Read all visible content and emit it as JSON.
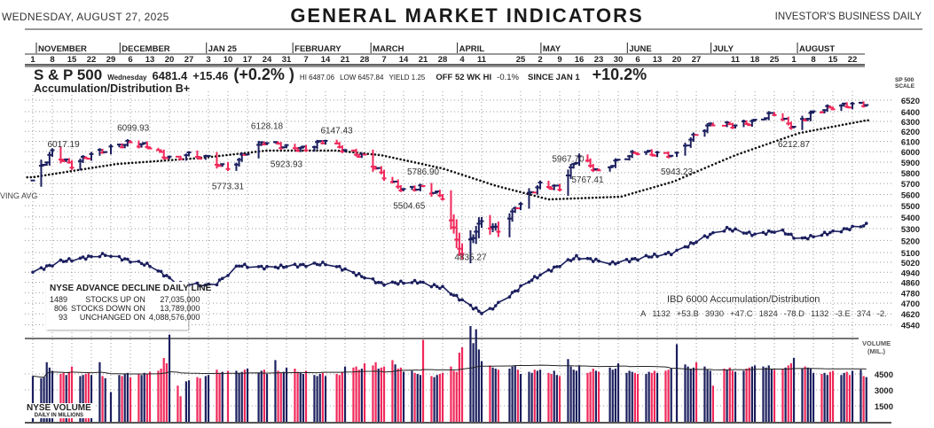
{
  "header": {
    "date": "WEDNESDAY, AUGUST 27, 2025",
    "title": "GENERAL MARKET INDICATORS",
    "source": "INVESTOR'S BUSINESS DAILY"
  },
  "quote": {
    "name": "S & P 500",
    "day": "Wednesday",
    "close": "6481.4",
    "change": "+15.46",
    "pct": "(+0.2% )",
    "hi": "HI 6487.06",
    "low": "LOW 6457.84",
    "yield": "YIELD 1.25",
    "off_label": "OFF 52 WK HI",
    "off_value": "-0.1%",
    "since_label": "SINCE JAN 1",
    "since_value": "+10.2%"
  },
  "ad_rating": "Accumulation/Distribution   B+",
  "moving_avg_label": "VING AVG",
  "scale_label": [
    "SP 500",
    "SCALE"
  ],
  "volume_label": [
    "VOLUME",
    "(MIL.)"
  ],
  "nyse_ad": {
    "title": "NYSE ADVANCE DECLINE DAILY LINE",
    "rows": [
      {
        "count": "1489",
        "label": "STOCKS  UP ON",
        "volume": "27,035,000"
      },
      {
        "count": "806",
        "label": "STOCKS  DOWN ON",
        "volume": "13,789,000"
      },
      {
        "count": "93",
        "label": "UNCHANGED ON",
        "volume": "4,088,576,000"
      }
    ]
  },
  "nyse_volume": {
    "title": "NYSE VOLUME",
    "subtitle": "DAILY IN MILLIONS"
  },
  "ibd6000": {
    "title": "IBD 6000 Accumulation/Distribution",
    "items": [
      "A",
      "1132",
      "+53.B",
      "3930",
      "+47.C",
      "1824",
      "-78.D",
      "1132",
      "-3.E",
      "374",
      "-2."
    ]
  },
  "chart_data": {
    "type": "ohlc+line+bar",
    "title": "GENERAL MARKET INDICATORS",
    "x_unit": "days since Nov 1, 2024",
    "months": [
      {
        "label": "NOVEMBER",
        "day": 0
      },
      {
        "label": "DECEMBER",
        "day": 30
      },
      {
        "label": "JAN 25",
        "day": 61
      },
      {
        "label": "FEBRUARY",
        "day": 92
      },
      {
        "label": "MARCH",
        "day": 120
      },
      {
        "label": "APRIL",
        "day": 151
      },
      {
        "label": "MAY",
        "day": 181
      },
      {
        "label": "JUNE",
        "day": 212
      },
      {
        "label": "JULY",
        "day": 242
      },
      {
        "label": "AUGUST",
        "day": 273
      }
    ],
    "day_ticks": [
      {
        "label": "1",
        "day": 0
      },
      {
        "label": "8",
        "day": 7
      },
      {
        "label": "15",
        "day": 14
      },
      {
        "label": "22",
        "day": 21
      },
      {
        "label": "29",
        "day": 28
      },
      {
        "label": "6",
        "day": 35
      },
      {
        "label": "13",
        "day": 42
      },
      {
        "label": "20",
        "day": 49
      },
      {
        "label": "27",
        "day": 56
      },
      {
        "label": "3",
        "day": 63
      },
      {
        "label": "10",
        "day": 70
      },
      {
        "label": "17",
        "day": 77
      },
      {
        "label": "24",
        "day": 84
      },
      {
        "label": "31",
        "day": 91
      },
      {
        "label": "7",
        "day": 98
      },
      {
        "label": "14",
        "day": 105
      },
      {
        "label": "21",
        "day": 112
      },
      {
        "label": "28",
        "day": 119
      },
      {
        "label": "7",
        "day": 126
      },
      {
        "label": "14",
        "day": 133
      },
      {
        "label": "21",
        "day": 140
      },
      {
        "label": "28",
        "day": 147
      },
      {
        "label": "4",
        "day": 154
      },
      {
        "label": "11",
        "day": 161
      },
      {
        "label": "25",
        "day": 175
      },
      {
        "label": "2",
        "day": 182
      },
      {
        "label": "9",
        "day": 189
      },
      {
        "label": "16",
        "day": 196
      },
      {
        "label": "23",
        "day": 203
      },
      {
        "label": "30",
        "day": 210
      },
      {
        "label": "6",
        "day": 217
      },
      {
        "label": "13",
        "day": 224
      },
      {
        "label": "20",
        "day": 231
      },
      {
        "label": "27",
        "day": 238
      },
      {
        "label": "11",
        "day": 252
      },
      {
        "label": "18",
        "day": 259
      },
      {
        "label": "25",
        "day": 266
      },
      {
        "label": "1",
        "day": 273
      },
      {
        "label": "8",
        "day": 280
      },
      {
        "label": "15",
        "day": 287
      },
      {
        "label": "22",
        "day": 294
      }
    ],
    "price_axis": {
      "scale": "log",
      "ticks": [
        6520,
        6400,
        6300,
        6200,
        6100,
        6000,
        5900,
        5800,
        5700,
        5600,
        5500,
        5400,
        5300,
        5200,
        5100,
        5020,
        4940,
        4860,
        4780,
        4700,
        4620,
        4540
      ]
    },
    "volume_axis": {
      "ticks": [
        4500,
        3000,
        1500
      ]
    },
    "price_weekly_close": [
      [
        0,
        5728
      ],
      [
        7,
        5995
      ],
      [
        14,
        5870
      ],
      [
        21,
        5969
      ],
      [
        28,
        6032
      ],
      [
        35,
        6090
      ],
      [
        42,
        6051
      ],
      [
        49,
        5930
      ],
      [
        56,
        5970
      ],
      [
        63,
        5942
      ],
      [
        70,
        5827
      ],
      [
        77,
        5997
      ],
      [
        84,
        6101
      ],
      [
        91,
        6040
      ],
      [
        98,
        6026
      ],
      [
        105,
        6115
      ],
      [
        112,
        6013
      ],
      [
        119,
        5955
      ],
      [
        126,
        5770
      ],
      [
        133,
        5639
      ],
      [
        140,
        5667
      ],
      [
        147,
        5581
      ],
      [
        154,
        5074
      ],
      [
        161,
        5363
      ],
      [
        167,
        5283
      ],
      [
        175,
        5525
      ],
      [
        182,
        5686
      ],
      [
        189,
        5660
      ],
      [
        196,
        5958
      ],
      [
        203,
        5802
      ],
      [
        210,
        5912
      ],
      [
        217,
        6000
      ],
      [
        224,
        5977
      ],
      [
        231,
        5967
      ],
      [
        238,
        6173
      ],
      [
        244,
        6279
      ],
      [
        252,
        6260
      ],
      [
        259,
        6297
      ],
      [
        266,
        6389
      ],
      [
        273,
        6238
      ],
      [
        280,
        6389
      ],
      [
        287,
        6450
      ],
      [
        294,
        6467
      ],
      [
        299,
        6481
      ]
    ],
    "moving_average_200": [
      [
        0,
        5758
      ],
      [
        30,
        5882
      ],
      [
        61,
        5941
      ],
      [
        84,
        6011
      ],
      [
        109,
        6011
      ],
      [
        125,
        5966
      ],
      [
        147,
        5840
      ],
      [
        166,
        5680
      ],
      [
        185,
        5556
      ],
      [
        211,
        5580
      ],
      [
        230,
        5719
      ],
      [
        252,
        5966
      ],
      [
        275,
        6183
      ],
      [
        299,
        6311
      ]
    ],
    "nyse_ad_line": [
      [
        0,
        4941
      ],
      [
        10,
        5027
      ],
      [
        26,
        5083
      ],
      [
        42,
        4995
      ],
      [
        52,
        4850
      ],
      [
        65,
        4836
      ],
      [
        74,
        4995
      ],
      [
        84,
        4977
      ],
      [
        106,
        5011
      ],
      [
        125,
        4850
      ],
      [
        138,
        4865
      ],
      [
        147,
        4817
      ],
      [
        157,
        4680
      ],
      [
        162,
        4616
      ],
      [
        168,
        4713
      ],
      [
        179,
        4883
      ],
      [
        195,
        5063
      ],
      [
        208,
        5011
      ],
      [
        220,
        5063
      ],
      [
        230,
        5099
      ],
      [
        243,
        5249
      ],
      [
        249,
        5300
      ],
      [
        259,
        5249
      ],
      [
        268,
        5286
      ],
      [
        275,
        5209
      ],
      [
        287,
        5271
      ],
      [
        294,
        5307
      ],
      [
        300,
        5338
      ]
    ],
    "annotations": [
      {
        "label": "6017.19",
        "day": 11,
        "pos": "above"
      },
      {
        "label": "6099.93",
        "day": 36,
        "pos": "above"
      },
      {
        "label": "5773.31",
        "day": 70,
        "pos": "below"
      },
      {
        "label": "6128.18",
        "day": 84,
        "pos": "above"
      },
      {
        "label": "5923.93",
        "day": 91,
        "pos": "below"
      },
      {
        "label": "6147.43",
        "day": 109,
        "pos": "above"
      },
      {
        "label": "5504.65",
        "day": 135,
        "pos": "below"
      },
      {
        "label": "5786.90",
        "day": 140,
        "pos": "above"
      },
      {
        "label": "4835.27",
        "day": 157,
        "pos": "below"
      },
      {
        "label": "5967.70",
        "day": 192,
        "pos": "above"
      },
      {
        "label": "5767.41",
        "day": 199,
        "pos": "below"
      },
      {
        "label": "5943.23",
        "day": 231,
        "pos": "below"
      },
      {
        "label": "6212.87",
        "day": 273,
        "pos": "below"
      }
    ],
    "volume_mil": [
      4300,
      4100,
      4200,
      5600,
      5100,
      4800,
      4500,
      4600,
      4400,
      4700,
      5200,
      4300,
      4400,
      4500,
      4600,
      4400,
      5600,
      4300,
      4100,
      2800,
      4400,
      4300,
      4500,
      4600,
      4200,
      4500,
      4400,
      4600,
      4500,
      4700,
      4800,
      5000,
      6000,
      5500,
      8200,
      3400,
      2400,
      3800,
      3900,
      4200,
      4100,
      4300,
      4400,
      4900,
      4600,
      4700,
      4800,
      4800,
      4600,
      4700,
      4900,
      5000,
      4600,
      4800,
      4900,
      4500,
      5800,
      4800,
      4600,
      4700,
      5100,
      5000,
      4700,
      4600,
      4500,
      4800,
      4400,
      4300,
      4500,
      4600,
      4300,
      4500,
      4400,
      4700,
      5200,
      5100,
      5200,
      4900,
      5000,
      5500,
      5300,
      5600,
      5000,
      5100,
      5200,
      5800,
      5400,
      5000,
      5100,
      4700,
      4800,
      4600,
      4500,
      4400,
      7700,
      4300,
      4200,
      4400,
      4500,
      4600,
      5200,
      4800,
      4700,
      6500,
      7000,
      9000,
      7400,
      8700,
      6800,
      5700,
      5300,
      5100,
      5000,
      4900,
      5000,
      5200,
      5300,
      4900,
      4500,
      4700,
      4600,
      4900,
      4800,
      4900,
      4600,
      4500,
      4800,
      4400,
      4300,
      5900,
      5200,
      4900,
      4800,
      5300,
      4600,
      4700,
      5000,
      4800,
      4700,
      5100,
      4900,
      5000,
      5500,
      4600,
      4800,
      4700,
      4600,
      4500,
      4500,
      4700,
      4600,
      4800,
      4600,
      4800,
      4900,
      5000,
      7300,
      5400,
      5200,
      5000,
      5100,
      5600,
      5200,
      4900,
      4800,
      3400,
      5000,
      4900,
      5100,
      4800,
      4700,
      4800,
      5000,
      5100,
      5200,
      5300,
      5200,
      5100,
      5300,
      5000,
      4900,
      5000,
      5100,
      5300,
      5500,
      6000,
      5000,
      5200,
      5100,
      5000,
      4600,
      4500,
      4600,
      4400,
      4700,
      4800,
      4400,
      4600,
      4700,
      4400,
      4800,
      4900,
      4300,
      4200
    ]
  },
  "colors": {
    "up": "#1b1f5e",
    "down": "#f0285a",
    "grid": "#9a9a9a"
  }
}
